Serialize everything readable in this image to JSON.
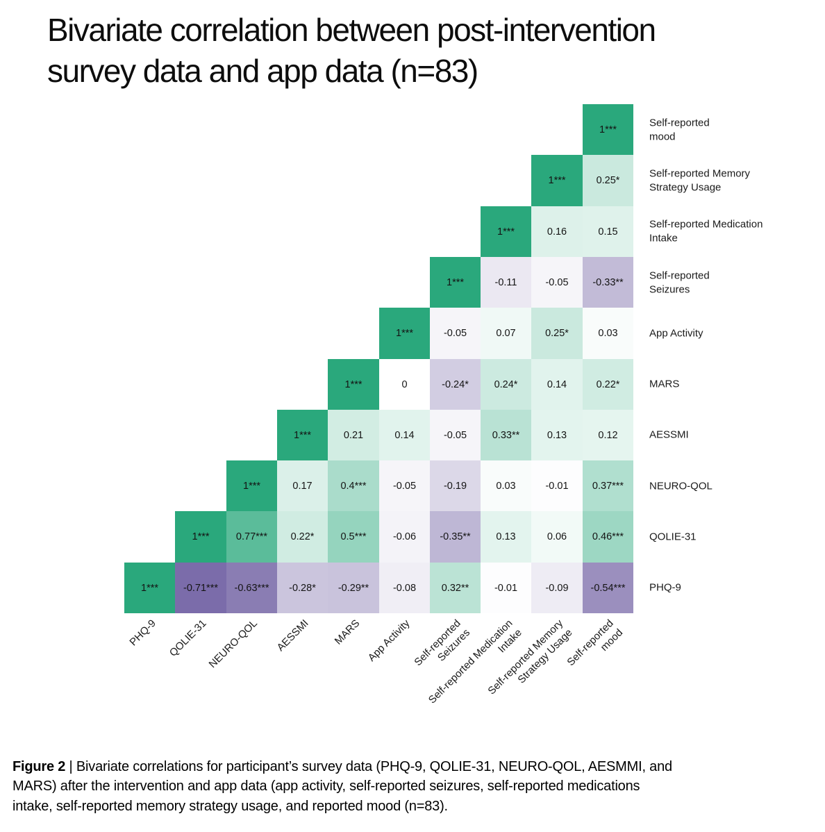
{
  "caption": {
    "label": "Figure 2",
    "separator": " | ",
    "lines": [
      "Bivariate correlations for participant’s survey data (PHQ-9, QOLIE-31, NEURO-QOL, AESMMI, and",
      "MARS) after the intervention and app data (app activity, self-reported seizures, self-reported medications",
      "intake, self-reported memory strategy usage, and reported mood (n=83)."
    ]
  },
  "chart_data": {
    "type": "heatmap",
    "title": "Bivariate correlation between post-intervention survey data and app data (n=83)",
    "title_lines": [
      "Bivariate correlation between post-intervention",
      "survey data and app data (n=83)"
    ],
    "n": 83,
    "value_range": [
      -1,
      1
    ],
    "legend": "none",
    "grid": false,
    "columns": [
      "PHQ-9",
      "QOLIE-31",
      "NEURO-QOL",
      "AESSMI",
      "MARS",
      "App Activity",
      "Self-reported Seizures",
      "Self-reported Medication Intake",
      "Self-reported Memory Strategy Usage",
      "Self-reported mood"
    ],
    "column_label_lines": [
      [
        "PHQ-9"
      ],
      [
        "QOLIE-31"
      ],
      [
        "NEURO-QOL"
      ],
      [
        "AESSMI"
      ],
      [
        "MARS"
      ],
      [
        "App Activity"
      ],
      [
        "Self-reported",
        "Seizures"
      ],
      [
        "Self-reported Medication",
        "Intake"
      ],
      [
        "Self-reported Memory",
        "Strategy Usage"
      ],
      [
        "Self-reported",
        "mood"
      ]
    ],
    "rows": [
      "Self-reported mood",
      "Self-reported Memory Strategy Usage",
      "Self-reported Medication Intake",
      "Self-reported Seizures",
      "App Activity",
      "MARS",
      "AESSMI",
      "NEURO-QOL",
      "QOLIE-31",
      "PHQ-9"
    ],
    "row_label_lines": [
      [
        "Self-reported",
        "mood"
      ],
      [
        "Self-reported Memory",
        "Strategy Usage"
      ],
      [
        "Self-reported Medication",
        "Intake"
      ],
      [
        "Self-reported",
        "Seizures"
      ],
      [
        "App Activity"
      ],
      [
        "MARS"
      ],
      [
        "AESSMI"
      ],
      [
        "NEURO-QOL"
      ],
      [
        "QOLIE-31"
      ],
      [
        "PHQ-9"
      ]
    ],
    "cell_labels": [
      [
        null,
        null,
        null,
        null,
        null,
        null,
        null,
        null,
        null,
        "1***"
      ],
      [
        null,
        null,
        null,
        null,
        null,
        null,
        null,
        null,
        "1***",
        "0.25*"
      ],
      [
        null,
        null,
        null,
        null,
        null,
        null,
        null,
        "1***",
        "0.16",
        "0.15"
      ],
      [
        null,
        null,
        null,
        null,
        null,
        null,
        "1***",
        "-0.11",
        "-0.05",
        "-0.33**"
      ],
      [
        null,
        null,
        null,
        null,
        null,
        "1***",
        "-0.05",
        "0.07",
        "0.25*",
        "0.03"
      ],
      [
        null,
        null,
        null,
        null,
        "1***",
        "0",
        "-0.24*",
        "0.24*",
        "0.14",
        "0.22*"
      ],
      [
        null,
        null,
        null,
        "1***",
        "0.21",
        "0.14",
        "-0.05",
        "0.33**",
        "0.13",
        "0.12"
      ],
      [
        null,
        null,
        "1***",
        "0.17",
        "0.4***",
        "-0.05",
        "-0.19",
        "0.03",
        "-0.01",
        "0.37***"
      ],
      [
        null,
        "1***",
        "0.77***",
        "0.22*",
        "0.5***",
        "-0.06",
        "-0.35**",
        "0.13",
        "0.06",
        "0.46***"
      ],
      [
        "1***",
        "-0.71***",
        "-0.63***",
        "-0.28*",
        "-0.29**",
        "-0.08",
        "0.32**",
        "-0.01",
        "-0.09",
        "-0.54***"
      ]
    ],
    "colormap": {
      "positive_end": "#2aa87c",
      "midpoint": "#ffffff",
      "negative_end": "#453087"
    }
  }
}
